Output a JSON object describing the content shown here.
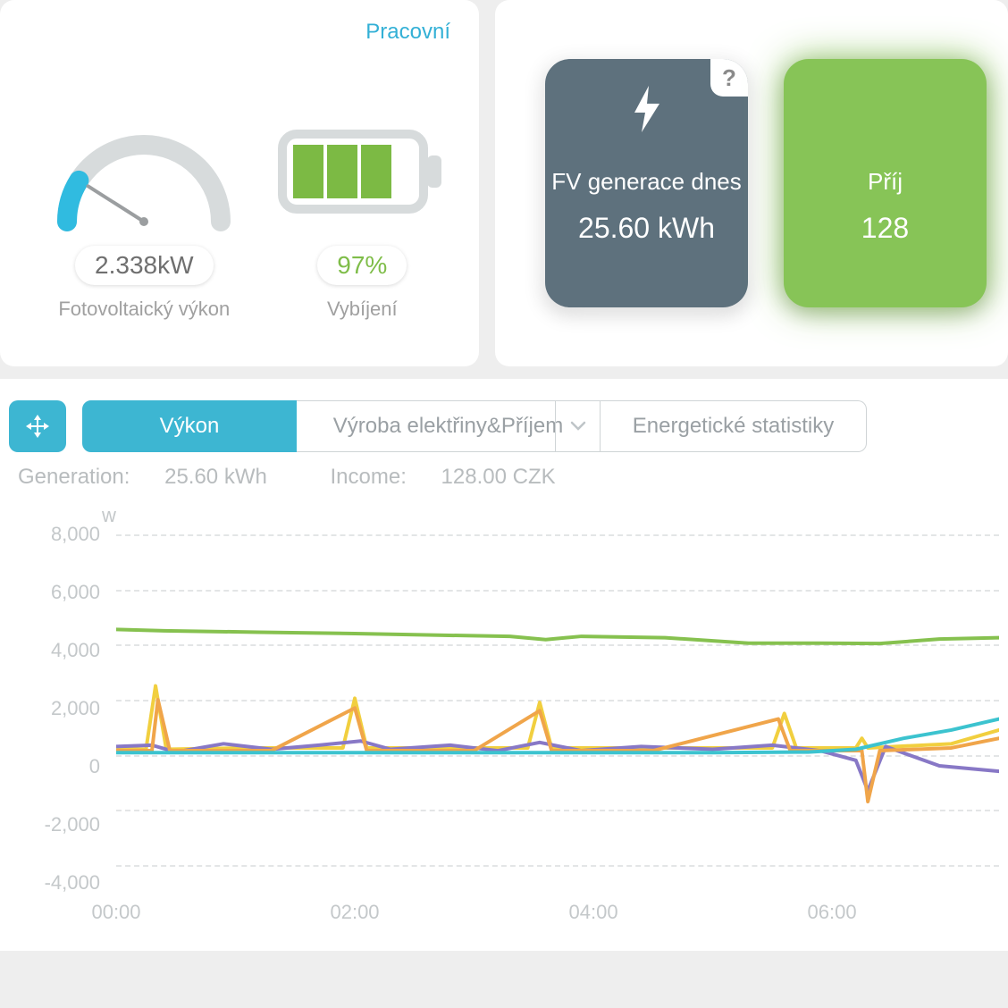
{
  "status_link": "Pracovní",
  "gauge": {
    "value_text": "2.338kW",
    "label": "Fotovoltaický výkon",
    "fraction": 0.18,
    "bg_color": "#d7dbdc",
    "fg_color": "#30bbe0",
    "needle_color": "#9b9ea0"
  },
  "battery": {
    "value_text": "97%",
    "label": "Vybíjení",
    "cells_filled": 3,
    "cells_total": 4,
    "fill_color": "#7cba44",
    "outline_color": "#d7dbdc"
  },
  "tiles": [
    {
      "title": "FV generace dnes",
      "value": "25.60 kWh",
      "color": "gray",
      "icon": "bolt"
    },
    {
      "title": "Příj",
      "value": "128",
      "color": "green",
      "icon": "none"
    }
  ],
  "tabs": {
    "active": "Výkon",
    "mid": "Výroba elektřiny&Příjem",
    "right": "Energetické statistiky"
  },
  "stats": {
    "generation_label": "Generation:",
    "generation_value": "25.60 kWh",
    "income_label": "Income:",
    "income_value": "128.00 CZK"
  },
  "chart": {
    "y_unit": "w",
    "y_min": -4000,
    "y_max": 8000,
    "y_ticks": [
      8000,
      6000,
      4000,
      2000,
      0,
      -2000,
      -4000
    ],
    "y_tick_labels": [
      "8,000",
      "6,000",
      "4,000",
      "2,000",
      "0",
      "-2,000",
      "-4,000"
    ],
    "x_min": 0,
    "x_max": 7.4,
    "x_ticks": [
      0,
      2,
      4,
      6
    ],
    "x_tick_labels": [
      "00:00",
      "02:00",
      "04:00",
      "06:00"
    ],
    "grid_dash_color": "#e3e5e6",
    "series": [
      {
        "name": "green",
        "color": "#86c14f",
        "width": 4,
        "points": [
          [
            0,
            4550
          ],
          [
            0.4,
            4500
          ],
          [
            1.2,
            4450
          ],
          [
            2.0,
            4400
          ],
          [
            2.6,
            4350
          ],
          [
            3.3,
            4300
          ],
          [
            3.6,
            4180
          ],
          [
            3.9,
            4300
          ],
          [
            4.6,
            4250
          ],
          [
            5.3,
            4050
          ],
          [
            5.9,
            4050
          ],
          [
            6.4,
            4040
          ],
          [
            6.9,
            4200
          ],
          [
            7.4,
            4250
          ]
        ]
      },
      {
        "name": "yellow",
        "color": "#f1cf3f",
        "width": 4,
        "points": [
          [
            0,
            200
          ],
          [
            0.25,
            200
          ],
          [
            0.33,
            2500
          ],
          [
            0.42,
            200
          ],
          [
            1.1,
            250
          ],
          [
            1.9,
            250
          ],
          [
            2.0,
            2050
          ],
          [
            2.1,
            250
          ],
          [
            2.9,
            250
          ],
          [
            3.45,
            250
          ],
          [
            3.55,
            1900
          ],
          [
            3.65,
            250
          ],
          [
            4.8,
            250
          ],
          [
            5.5,
            250
          ],
          [
            5.6,
            1500
          ],
          [
            5.7,
            250
          ],
          [
            6.2,
            250
          ],
          [
            6.25,
            600
          ],
          [
            6.3,
            250
          ],
          [
            7.0,
            400
          ],
          [
            7.4,
            900
          ]
        ]
      },
      {
        "name": "purple",
        "color": "#8878c6",
        "width": 4,
        "points": [
          [
            0,
            300
          ],
          [
            0.3,
            350
          ],
          [
            0.5,
            100
          ],
          [
            0.9,
            400
          ],
          [
            1.3,
            200
          ],
          [
            1.7,
            350
          ],
          [
            2.05,
            500
          ],
          [
            2.3,
            200
          ],
          [
            2.8,
            350
          ],
          [
            3.2,
            150
          ],
          [
            3.55,
            450
          ],
          [
            3.9,
            150
          ],
          [
            4.4,
            300
          ],
          [
            5.0,
            200
          ],
          [
            5.5,
            350
          ],
          [
            5.9,
            150
          ],
          [
            6.2,
            -200
          ],
          [
            6.3,
            -1300
          ],
          [
            6.45,
            300
          ],
          [
            6.9,
            -400
          ],
          [
            7.4,
            -600
          ]
        ]
      },
      {
        "name": "orange",
        "color": "#f0a54a",
        "width": 4,
        "points": [
          [
            0,
            150
          ],
          [
            0.3,
            150
          ],
          [
            0.35,
            2000
          ],
          [
            0.45,
            150
          ],
          [
            1.3,
            150
          ],
          [
            2.0,
            1700
          ],
          [
            2.1,
            150
          ],
          [
            3.0,
            150
          ],
          [
            3.55,
            1600
          ],
          [
            3.65,
            150
          ],
          [
            4.5,
            150
          ],
          [
            5.55,
            1300
          ],
          [
            5.65,
            150
          ],
          [
            6.25,
            150
          ],
          [
            6.3,
            -1700
          ],
          [
            6.4,
            150
          ],
          [
            7.0,
            250
          ],
          [
            7.4,
            600
          ]
        ]
      },
      {
        "name": "teal",
        "color": "#3cc3cf",
        "width": 4,
        "points": [
          [
            0,
            80
          ],
          [
            1.0,
            80
          ],
          [
            2.0,
            80
          ],
          [
            3.0,
            80
          ],
          [
            4.0,
            80
          ],
          [
            5.0,
            80
          ],
          [
            5.8,
            100
          ],
          [
            6.2,
            200
          ],
          [
            6.6,
            600
          ],
          [
            7.0,
            900
          ],
          [
            7.4,
            1300
          ]
        ]
      }
    ]
  }
}
